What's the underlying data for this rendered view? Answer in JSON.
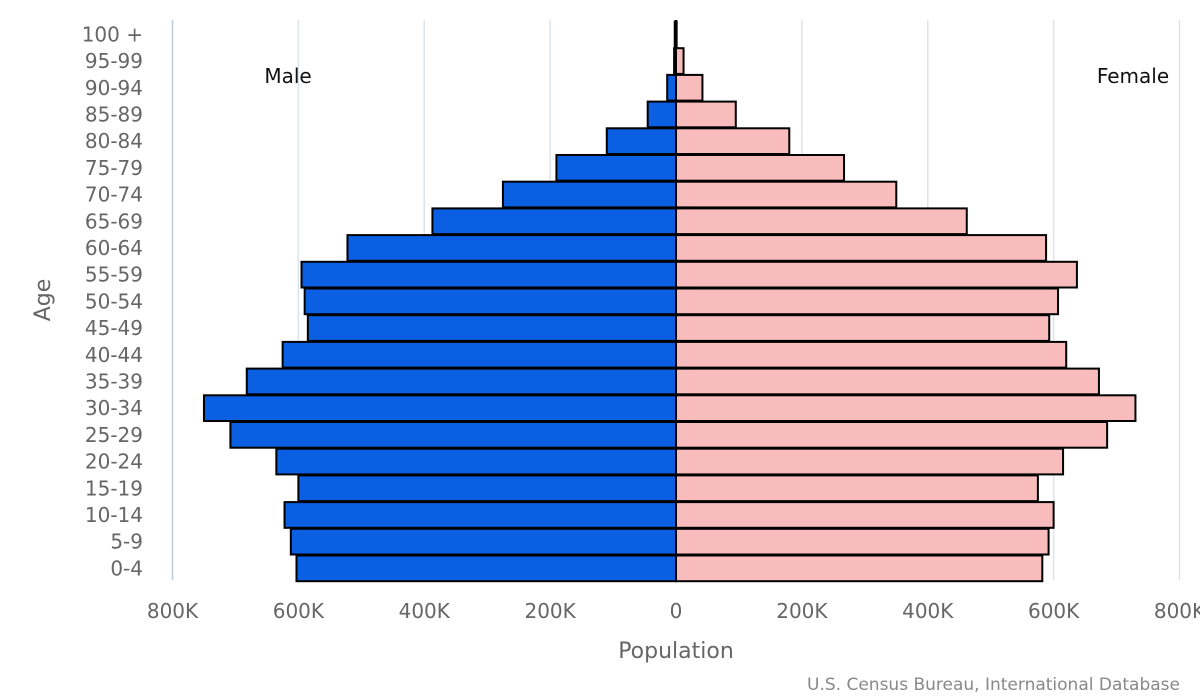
{
  "colors": {
    "male": "#0b5fe3",
    "female": "#f8bcbc",
    "grid": "#dde3ea",
    "axis_line": "#c0ccd8",
    "text": "#666666"
  },
  "chart_data": {
    "type": "bar",
    "orientation": "horizontal",
    "subtype": "population-pyramid",
    "xlabel": "Population",
    "ylabel": "Age",
    "left_label": "Male",
    "right_label": "Female",
    "credit": "U.S. Census Bureau, International Database",
    "xlim": [
      -800000,
      800000
    ],
    "xticks": [
      -800000,
      -600000,
      -400000,
      -200000,
      0,
      200000,
      400000,
      600000,
      800000
    ],
    "xtick_labels": [
      "800K",
      "600K",
      "400K",
      "200K",
      "0",
      "200K",
      "400K",
      "600K",
      "800K"
    ],
    "categories": [
      "100 +",
      "95-99",
      "90-94",
      "85-89",
      "80-84",
      "75-79",
      "70-74",
      "65-69",
      "60-64",
      "55-59",
      "50-54",
      "45-49",
      "40-44",
      "35-39",
      "30-34",
      "25-29",
      "20-24",
      "15-19",
      "10-14",
      "5-9",
      "0-4"
    ],
    "series": [
      {
        "name": "Male",
        "values": [
          2000,
          3000,
          14000,
          45000,
          110000,
          190000,
          275000,
          387000,
          522000,
          595000,
          590000,
          585000,
          625000,
          682000,
          750000,
          708000,
          635000,
          600000,
          622000,
          612000,
          603000
        ]
      },
      {
        "name": "Female",
        "values": [
          1000,
          12000,
          42000,
          95000,
          180000,
          267000,
          350000,
          462000,
          588000,
          637000,
          607000,
          593000,
          620000,
          672000,
          730000,
          685000,
          615000,
          575000,
          600000,
          592000,
          582000
        ]
      }
    ]
  }
}
